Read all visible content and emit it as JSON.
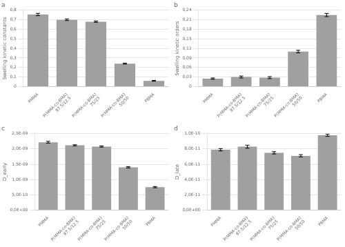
{
  "chart_data": [
    {
      "type": "bar",
      "title": "a",
      "categories": [
        "PMMA",
        "P(MMA-co-BMA)\n87.5/12.5",
        "P(MMA-co-BMA)\n75/25",
        "P(MMA-co-BMA)\n50/50",
        "PBMA"
      ],
      "values": [
        0.755,
        0.7,
        0.68,
        0.24,
        0.06
      ],
      "errors": [
        0.012,
        0.008,
        0.007,
        0.005,
        0.004
      ],
      "y_label": "Swelling kinetic constants",
      "color": "#a0a0a0",
      "ylim": [
        0,
        0.8
      ],
      "yticks": [
        0,
        {
          "value": 0.1,
          "label": "0,1"
        },
        {
          "value": 0.2,
          "label": "0,2"
        },
        {
          "value": 0.3,
          "label": "0,3"
        },
        {
          "value": 0.4,
          "label": "0,4"
        },
        {
          "value": 0.5,
          "label": "0,5"
        },
        {
          "value": 0.6,
          "label": "0,6"
        },
        {
          "value": 0.7,
          "label": "0,7"
        },
        {
          "value": 0.8,
          "label": "0,8"
        }
      ],
      "grid": true
    },
    {
      "type": "bar",
      "title": "b",
      "categories": [
        "PMMA",
        "P(MMA-co-BMA)\n87.5/12.5",
        "P(MMA-co-BMA)\n75/25",
        "P(MMA-co-BMA)\n50/50",
        "PBMA"
      ],
      "values": [
        0.025,
        0.03,
        0.028,
        0.11,
        0.225
      ],
      "errors": [
        0.002,
        0.003,
        0.003,
        0.004,
        0.005
      ],
      "y_label": "Swelling kinetic orders",
      "color": "#a0a0a0",
      "ylim": [
        0,
        0.24
      ],
      "yticks": [
        0,
        {
          "value": 0.03,
          "label": "0,03"
        },
        {
          "value": 0.06,
          "label": "0,06"
        },
        {
          "value": 0.09,
          "label": "0,09"
        },
        {
          "value": 0.12,
          "label": "0,12"
        },
        {
          "value": 0.15,
          "label": "0,15"
        },
        {
          "value": 0.18,
          "label": "0,18"
        },
        {
          "value": 0.21,
          "label": "0,21"
        },
        {
          "value": 0.24,
          "label": "0,24"
        }
      ],
      "grid": true
    },
    {
      "type": "bar",
      "title": "c",
      "categories": [
        "PMMA",
        "P(MMA-co-BMA)\n87.5/12.5",
        "P(MMA-co-BMA)\n75/25",
        "P(MMA-co-BMA)\n50/50",
        "PBMA"
      ],
      "values": [
        2.22e-09,
        2.12e-09,
        2.08e-09,
        1.4e-09,
        7.5e-10
      ],
      "errors": [
        3e-11,
        2e-11,
        2e-11,
        2e-11,
        2e-11
      ],
      "y_label": "D_early",
      "color": "#a0a0a0",
      "ylim": [
        0,
        2.5e-09
      ],
      "yticks": [
        {
          "value": 0,
          "label": "0,0E+00"
        },
        {
          "value": 5e-10,
          "label": "5,0E-10"
        },
        {
          "value": 1e-09,
          "label": "1,0E-09"
        },
        {
          "value": 1.5e-09,
          "label": "1,5E-09"
        },
        {
          "value": 2e-09,
          "label": "2,0E-09"
        },
        {
          "value": 2.5e-09,
          "label": "2,5E-09"
        }
      ],
      "grid": true
    },
    {
      "type": "bar",
      "title": "d",
      "categories": [
        "PMMA",
        "P(MMA-co-BMA)\n87.5/12.5",
        "P(MMA-co-BMA)\n75/25",
        "P(MMA-co-BMA)\n50/50",
        "PBMA"
      ],
      "values": [
        7.9e-11,
        8.3e-11,
        7.5e-11,
        7.1e-11,
        9.8e-11
      ],
      "errors": [
        1.5e-12,
        2e-12,
        1.5e-12,
        1.5e-12,
        1.5e-12
      ],
      "y_label": "D_late",
      "color": "#a0a0a0",
      "ylim": [
        0,
        1e-10
      ],
      "yticks": [
        {
          "value": 0,
          "label": "0,0E+00"
        },
        {
          "value": 2e-11,
          "label": "2,0E-11"
        },
        {
          "value": 4e-11,
          "label": "4,0E-11"
        },
        {
          "value": 6e-11,
          "label": "6,0E-11"
        },
        {
          "value": 8e-11,
          "label": "8,0E-11"
        },
        {
          "value": 1e-10,
          "label": "1,0E-10"
        }
      ],
      "grid": true
    }
  ]
}
